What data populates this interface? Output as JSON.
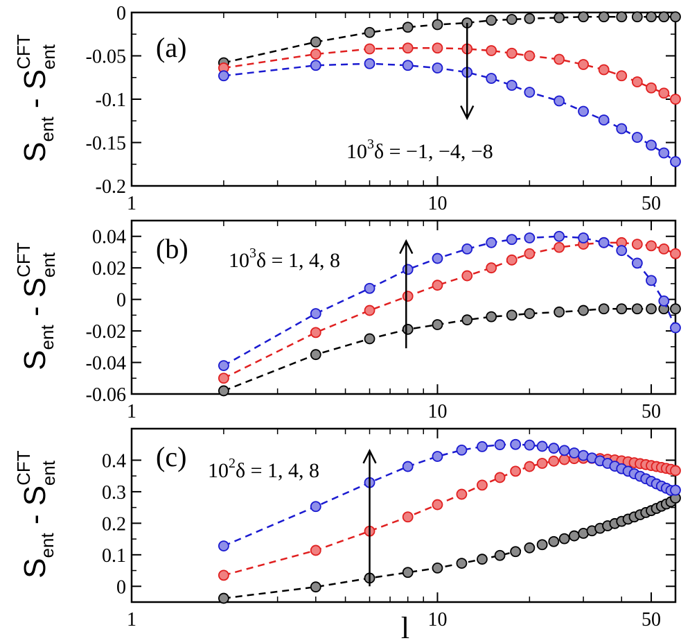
{
  "chart_data": [
    {
      "type": "scatter",
      "panel_label": "(a)",
      "annotation": {
        "base": "10",
        "exp": "3",
        "rest": "δ = −1, −4, −8"
      },
      "arrow": {
        "x": 12.5,
        "y_from": -0.012,
        "y_to": -0.122
      },
      "ylabel": {
        "pre": "S",
        "pre_sub": "ent",
        "mid": " - S",
        "sup": "CFT",
        "sub": "ent"
      },
      "xscale": "log",
      "xlim": [
        1,
        60
      ],
      "ylim": [
        -0.2,
        0
      ],
      "yticks": [
        0,
        -0.05,
        -0.1,
        -0.15,
        -0.2
      ],
      "ytick_labels": [
        "0",
        "-0.05",
        "-0.1",
        "-0.15",
        "-0.2"
      ],
      "xticks": [
        1,
        10,
        50
      ],
      "xtick_labels": [
        "1",
        "10",
        "50"
      ],
      "series": [
        {
          "color": "#000000",
          "x": [
            2,
            4,
            6,
            8,
            10,
            12.5,
            15,
            17.5,
            20,
            25,
            30,
            35,
            40,
            45,
            50,
            55,
            60
          ],
          "y": [
            -0.058,
            -0.034,
            -0.023,
            -0.017,
            -0.014,
            -0.012,
            -0.009,
            -0.008,
            -0.007,
            -0.006,
            -0.005,
            -0.005,
            -0.005,
            -0.005,
            -0.005,
            -0.005,
            -0.005
          ]
        },
        {
          "color": "#e02020",
          "x": [
            2,
            4,
            6,
            8,
            10,
            12.5,
            15,
            17.5,
            20,
            25,
            30,
            35,
            40,
            45,
            50,
            55,
            60
          ],
          "y": [
            -0.064,
            -0.048,
            -0.042,
            -0.041,
            -0.041,
            -0.042,
            -0.044,
            -0.047,
            -0.05,
            -0.054,
            -0.06,
            -0.066,
            -0.073,
            -0.08,
            -0.087,
            -0.093,
            -0.1
          ]
        },
        {
          "color": "#1a1ad0",
          "x": [
            2,
            4,
            6,
            8,
            10,
            12.5,
            15,
            17.5,
            20,
            25,
            30,
            35,
            40,
            45,
            50,
            55,
            60
          ],
          "y": [
            -0.073,
            -0.061,
            -0.059,
            -0.061,
            -0.064,
            -0.069,
            -0.076,
            -0.084,
            -0.092,
            -0.102,
            -0.114,
            -0.124,
            -0.134,
            -0.144,
            -0.153,
            -0.162,
            -0.172
          ]
        }
      ]
    },
    {
      "type": "scatter",
      "panel_label": "(b)",
      "annotation": {
        "base": "10",
        "exp": "3",
        "rest": "δ = 1, 4, 8"
      },
      "arrow": {
        "x": 7.9,
        "y_from": -0.031,
        "y_to": 0.037
      },
      "ylabel": {
        "pre": "S",
        "pre_sub": "ent",
        "mid": " - S",
        "sup": "CFT",
        "sub": "ent"
      },
      "xscale": "log",
      "xlim": [
        1,
        60
      ],
      "ylim": [
        -0.06,
        0.05
      ],
      "yticks": [
        0.04,
        0.02,
        0,
        -0.02,
        -0.04,
        -0.06
      ],
      "ytick_labels": [
        "0.04",
        "0.02",
        "0",
        "-0.02",
        "-0.04",
        "-0.06"
      ],
      "xticks": [
        1,
        10,
        50
      ],
      "xtick_labels": [
        "1",
        "10",
        "50"
      ],
      "series": [
        {
          "color": "#000000",
          "x": [
            2,
            4,
            6,
            8,
            10,
            12.5,
            15,
            17.5,
            20,
            25,
            30,
            35,
            40,
            45,
            50,
            55,
            60
          ],
          "y": [
            -0.058,
            -0.035,
            -0.025,
            -0.019,
            -0.016,
            -0.013,
            -0.011,
            -0.01,
            -0.009,
            -0.008,
            -0.007,
            -0.006,
            -0.006,
            -0.006,
            -0.006,
            -0.006,
            -0.006
          ]
        },
        {
          "color": "#e02020",
          "x": [
            2,
            4,
            6,
            8,
            10,
            12.5,
            15,
            17.5,
            20,
            25,
            30,
            35,
            40,
            45,
            50,
            55,
            60
          ],
          "y": [
            -0.05,
            -0.021,
            -0.007,
            0.002,
            0.009,
            0.015,
            0.02,
            0.025,
            0.029,
            0.033,
            0.035,
            0.036,
            0.036,
            0.035,
            0.034,
            0.032,
            0.029
          ]
        },
        {
          "color": "#1a1ad0",
          "x": [
            2,
            4,
            6,
            8,
            10,
            12.5,
            15,
            17.5,
            20,
            25,
            30,
            35,
            40,
            45,
            50,
            55,
            60
          ],
          "y": [
            -0.042,
            -0.009,
            0.007,
            0.019,
            0.026,
            0.032,
            0.036,
            0.038,
            0.039,
            0.04,
            0.039,
            0.036,
            0.031,
            0.023,
            0.012,
            -0.001,
            -0.018
          ]
        }
      ]
    },
    {
      "type": "scatter",
      "panel_label": "(c)",
      "annotation": {
        "base": "10",
        "exp": "2",
        "rest": "δ = 1, 4, 8"
      },
      "arrow": {
        "x": 6,
        "y_from": 0.0,
        "y_to": 0.43
      },
      "ylabel": {
        "pre": "S",
        "pre_sub": "ent",
        "mid": " - S",
        "sup": "CFT",
        "sub": "ent"
      },
      "xlabel_main": "l",
      "xscale": "log",
      "xlim": [
        1,
        60
      ],
      "ylim": [
        -0.05,
        0.5
      ],
      "yticks": [
        0.4,
        0.3,
        0.2,
        0.1,
        0
      ],
      "ytick_labels": [
        "0.4",
        "0.3",
        "0.2",
        "0.1",
        "0"
      ],
      "xticks": [
        1,
        10,
        50
      ],
      "xtick_labels": [
        "1",
        "10",
        "50"
      ],
      "series": [
        {
          "color": "#000000",
          "x": [
            2,
            4,
            6,
            8,
            10,
            12,
            14,
            16,
            18,
            20,
            22,
            24,
            26,
            28,
            30,
            32,
            34,
            36,
            38,
            40,
            42,
            44,
            46,
            48,
            50,
            52,
            54,
            56,
            58,
            60
          ],
          "y": [
            -0.038,
            -0.002,
            0.026,
            0.044,
            0.058,
            0.073,
            0.086,
            0.098,
            0.11,
            0.122,
            0.132,
            0.142,
            0.151,
            0.16,
            0.168,
            0.176,
            0.184,
            0.192,
            0.199,
            0.206,
            0.213,
            0.22,
            0.227,
            0.234,
            0.24,
            0.247,
            0.254,
            0.261,
            0.268,
            0.28
          ]
        },
        {
          "color": "#e02020",
          "x": [
            2,
            4,
            6,
            8,
            10,
            12,
            14,
            16,
            18,
            20,
            22,
            24,
            26,
            28,
            30,
            32,
            34,
            36,
            38,
            40,
            42,
            44,
            46,
            48,
            50,
            52,
            54,
            56,
            58,
            60
          ],
          "y": [
            0.035,
            0.114,
            0.175,
            0.22,
            0.259,
            0.292,
            0.321,
            0.345,
            0.365,
            0.38,
            0.39,
            0.397,
            0.402,
            0.405,
            0.406,
            0.406,
            0.405,
            0.403,
            0.401,
            0.398,
            0.395,
            0.392,
            0.389,
            0.386,
            0.383,
            0.38,
            0.377,
            0.374,
            0.371,
            0.367
          ]
        },
        {
          "color": "#1a1ad0",
          "x": [
            2,
            4,
            6,
            8,
            10,
            12,
            14,
            16,
            18,
            20,
            22,
            24,
            26,
            28,
            30,
            32,
            34,
            36,
            38,
            40,
            42,
            44,
            46,
            48,
            50,
            52,
            54,
            56,
            58,
            60
          ],
          "y": [
            0.128,
            0.253,
            0.329,
            0.38,
            0.412,
            0.432,
            0.443,
            0.449,
            0.45,
            0.448,
            0.444,
            0.438,
            0.431,
            0.423,
            0.415,
            0.407,
            0.398,
            0.39,
            0.381,
            0.373,
            0.365,
            0.357,
            0.349,
            0.341,
            0.333,
            0.325,
            0.318,
            0.311,
            0.304,
            0.305
          ]
        }
      ]
    }
  ]
}
